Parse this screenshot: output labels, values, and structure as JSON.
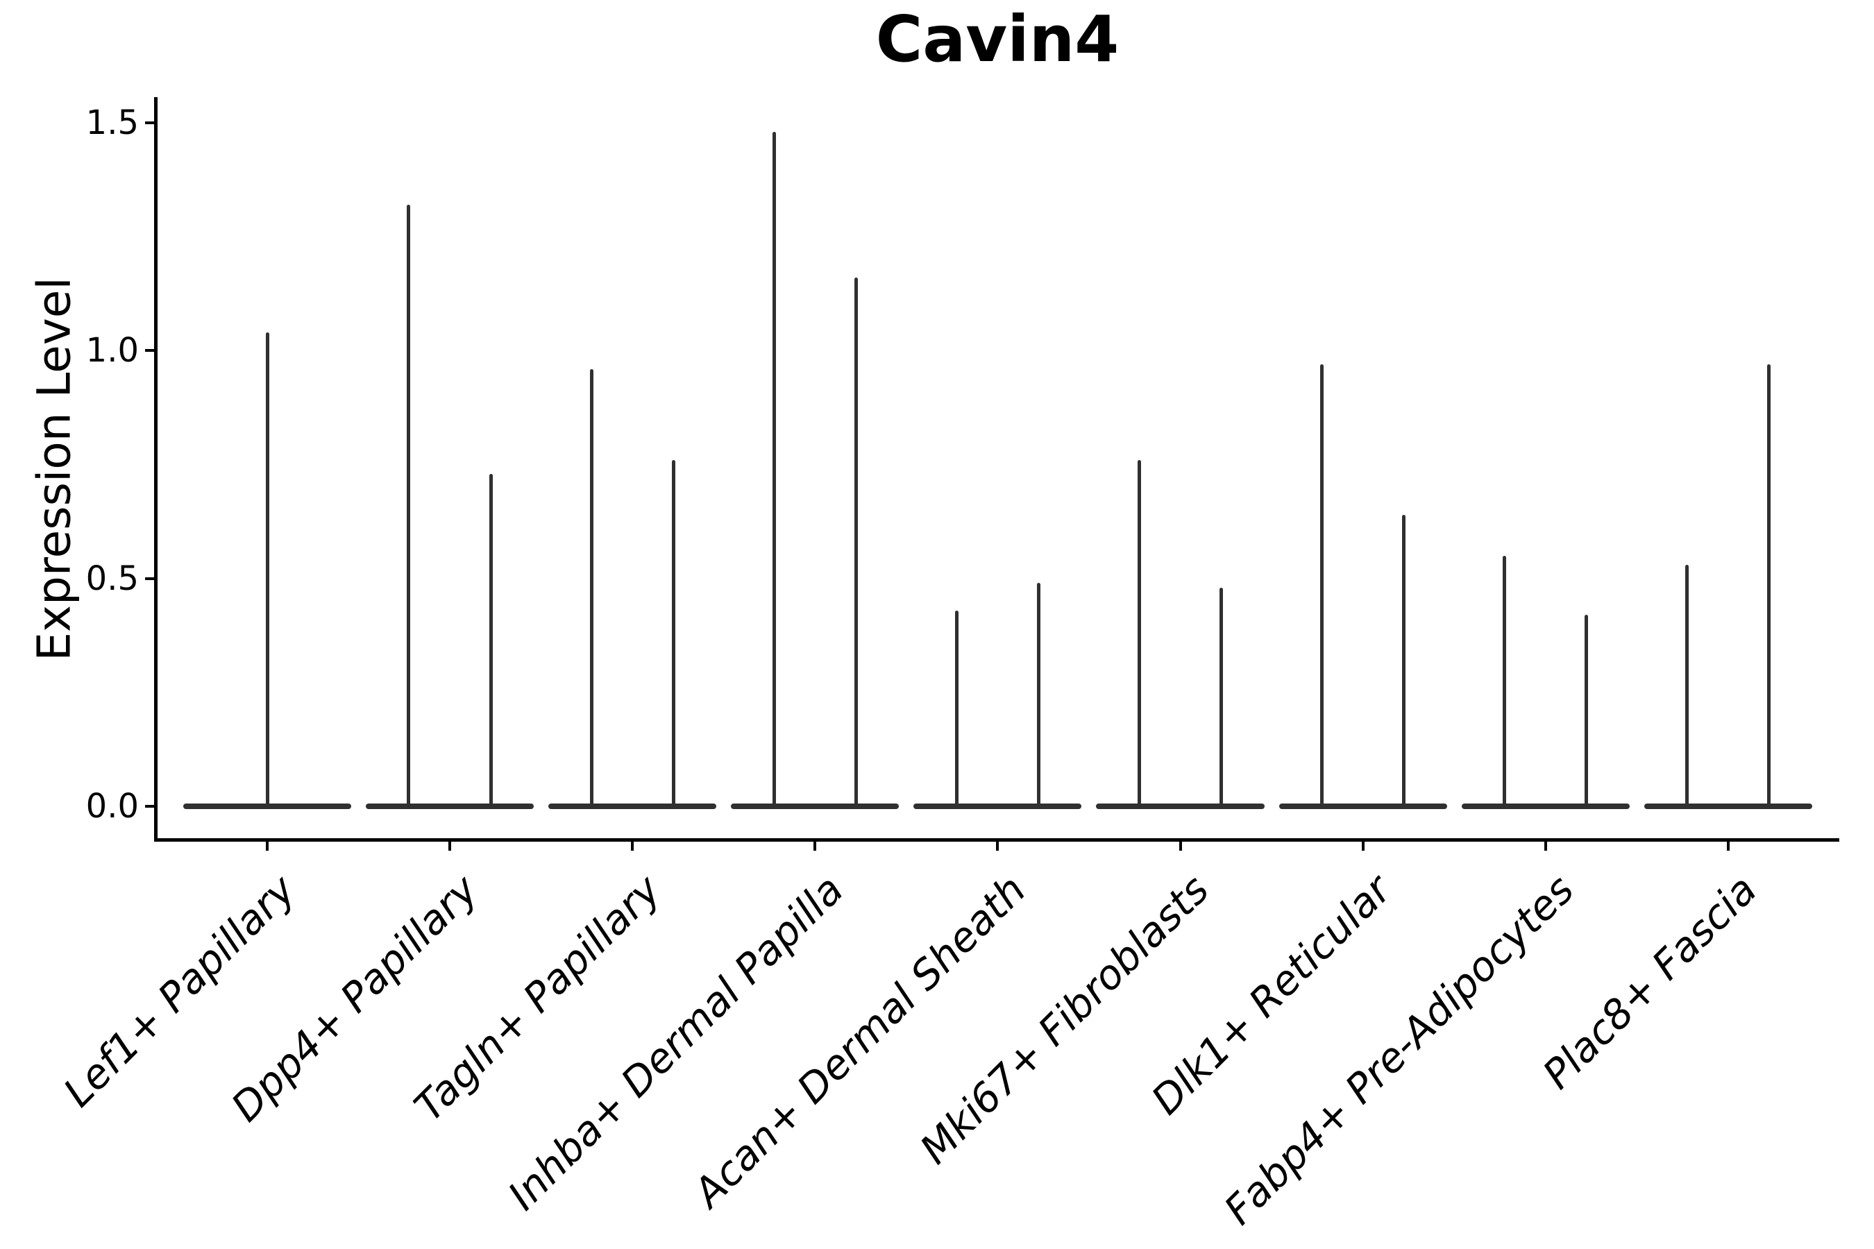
{
  "figure": {
    "title": "Cavin4",
    "ylabel": "Expression Level"
  },
  "chart_data": {
    "type": "violin",
    "title": "Cavin4",
    "xlabel": "",
    "ylabel": "Expression Level",
    "ylim": [
      0,
      1.55
    ],
    "yticks": [
      0.0,
      0.5,
      1.0,
      1.5
    ],
    "ytick_labels": [
      "0.0",
      "0.5",
      "1.0",
      "1.5"
    ],
    "grid": false,
    "legend_position": "none",
    "background": "#ffffff",
    "axis_color": "#000000",
    "violin_color": "#303030",
    "categories": [
      "Lef1+ Papillary",
      "Dpp4+ Papillary",
      "Tagln+ Papillary",
      "Inhba+ Dermal Papilla",
      "Acan+ Dermal Sheath",
      "Mki67+ Fibroblasts",
      "Dlk1+ Reticular",
      "Fabp4+ Pre-Adipocytes",
      "Plac8+ Fascia"
    ],
    "base_halfwidth": 0.46,
    "violins": [
      {
        "category": "Lef1+ Papillary",
        "spikes": [
          {
            "offset": 0,
            "max": 1.04
          }
        ]
      },
      {
        "category": "Dpp4+ Papillary",
        "spikes": [
          {
            "offset": -0.225,
            "max": 1.32
          },
          {
            "offset": 0.225,
            "max": 0.73
          }
        ]
      },
      {
        "category": "Tagln+ Papillary",
        "spikes": [
          {
            "offset": -0.225,
            "max": 0.96
          },
          {
            "offset": 0.225,
            "max": 0.76
          }
        ]
      },
      {
        "category": "Inhba+ Dermal Papilla",
        "spikes": [
          {
            "offset": -0.225,
            "max": 1.48
          },
          {
            "offset": 0.225,
            "max": 1.16
          }
        ]
      },
      {
        "category": "Acan+ Dermal Sheath",
        "spikes": [
          {
            "offset": -0.225,
            "max": 0.43
          },
          {
            "offset": 0.225,
            "max": 0.49
          }
        ]
      },
      {
        "category": "Mki67+ Fibroblasts",
        "spikes": [
          {
            "offset": -0.225,
            "max": 0.76
          },
          {
            "offset": 0.225,
            "max": 0.48
          }
        ]
      },
      {
        "category": "Dlk1+ Reticular",
        "spikes": [
          {
            "offset": -0.225,
            "max": 0.97
          },
          {
            "offset": 0.225,
            "max": 0.64
          }
        ]
      },
      {
        "category": "Fabp4+ Pre-Adipocytes",
        "spikes": [
          {
            "offset": -0.225,
            "max": 0.55
          },
          {
            "offset": 0.225,
            "max": 0.42
          }
        ]
      },
      {
        "category": "Plac8+ Fascia",
        "spikes": [
          {
            "offset": -0.225,
            "max": 0.53
          },
          {
            "offset": 0.225,
            "max": 0.97
          }
        ]
      }
    ]
  }
}
